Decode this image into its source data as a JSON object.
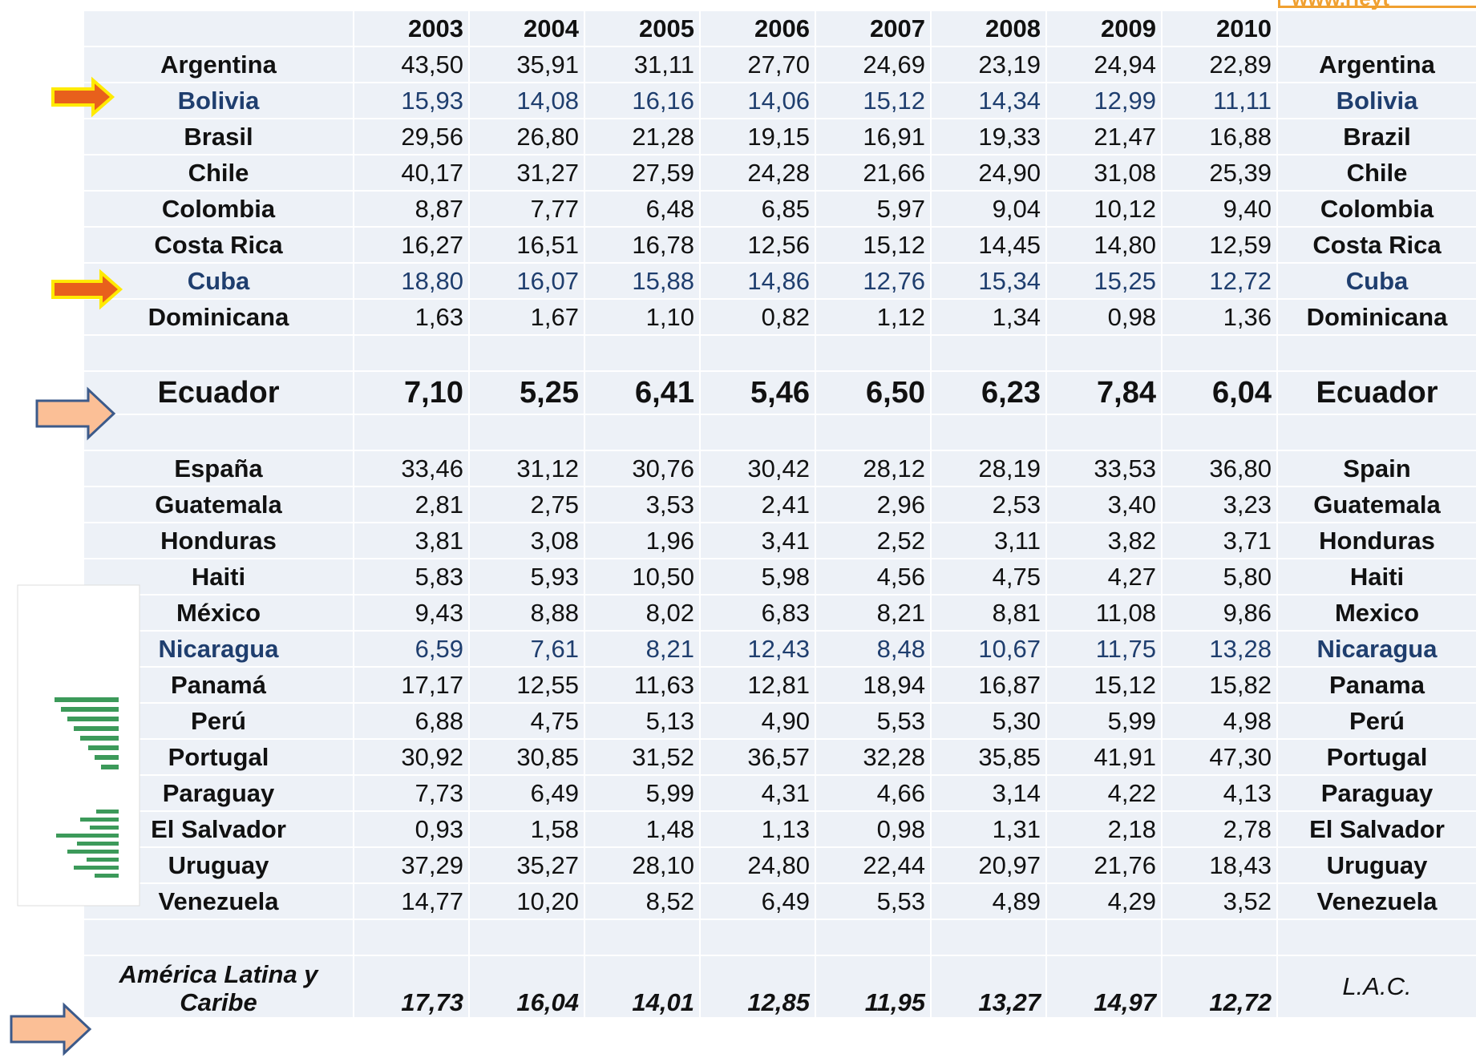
{
  "watermark": "www.rieyt",
  "table": {
    "columns": [
      "2003",
      "2004",
      "2005",
      "2006",
      "2007",
      "2008",
      "2009",
      "2010"
    ],
    "rows": [
      {
        "name": "Argentina",
        "values": [
          "43,50",
          "35,91",
          "31,11",
          "27,70",
          "24,69",
          "23,19",
          "24,94",
          "22,89"
        ],
        "name_en": "Argentina"
      },
      {
        "name": "Bolivia",
        "values": [
          "15,93",
          "14,08",
          "16,16",
          "14,06",
          "15,12",
          "14,34",
          "12,99",
          "11,11"
        ],
        "name_en": "Bolivia"
      },
      {
        "name": "Brasil",
        "values": [
          "29,56",
          "26,80",
          "21,28",
          "19,15",
          "16,91",
          "19,33",
          "21,47",
          "16,88"
        ],
        "name_en": "Brazil"
      },
      {
        "name": "Chile",
        "values": [
          "40,17",
          "31,27",
          "27,59",
          "24,28",
          "21,66",
          "24,90",
          "31,08",
          "25,39"
        ],
        "name_en": "Chile"
      },
      {
        "name": "Colombia",
        "values": [
          "8,87",
          "7,77",
          "6,48",
          "6,85",
          "5,97",
          "9,04",
          "10,12",
          "9,40"
        ],
        "name_en": "Colombia"
      },
      {
        "name": "Costa Rica",
        "values": [
          "16,27",
          "16,51",
          "16,78",
          "12,56",
          "15,12",
          "14,45",
          "14,80",
          "12,59"
        ],
        "name_en": "Costa Rica"
      },
      {
        "name": "Cuba",
        "values": [
          "18,80",
          "16,07",
          "15,88",
          "14,86",
          "12,76",
          "15,34",
          "15,25",
          "12,72"
        ],
        "name_en": "Cuba"
      },
      {
        "name": "Dominicana",
        "values": [
          "1,63",
          "1,67",
          "1,10",
          "0,82",
          "1,12",
          "1,34",
          "0,98",
          "1,36"
        ],
        "name_en": "Dominicana"
      },
      {
        "name": "Ecuador",
        "values": [
          "7,10",
          "5,25",
          "6,41",
          "5,46",
          "6,50",
          "6,23",
          "7,84",
          "6,04"
        ],
        "name_en": "Ecuador"
      },
      {
        "name": "España",
        "values": [
          "33,46",
          "31,12",
          "30,76",
          "30,42",
          "28,12",
          "28,19",
          "33,53",
          "36,80"
        ],
        "name_en": "Spain"
      },
      {
        "name": "Guatemala",
        "values": [
          "2,81",
          "2,75",
          "3,53",
          "2,41",
          "2,96",
          "2,53",
          "3,40",
          "3,23"
        ],
        "name_en": "Guatemala"
      },
      {
        "name": "Honduras",
        "values": [
          "3,81",
          "3,08",
          "1,96",
          "3,41",
          "2,52",
          "3,11",
          "3,82",
          "3,71"
        ],
        "name_en": "Honduras"
      },
      {
        "name": "Haiti",
        "values": [
          "5,83",
          "5,93",
          "10,50",
          "5,98",
          "4,56",
          "4,75",
          "4,27",
          "5,80"
        ],
        "name_en": "Haiti"
      },
      {
        "name": "México",
        "values": [
          "9,43",
          "8,88",
          "8,02",
          "6,83",
          "8,21",
          "8,81",
          "11,08",
          "9,86"
        ],
        "name_en": "Mexico"
      },
      {
        "name": "Nicaragua",
        "values": [
          "6,59",
          "7,61",
          "8,21",
          "12,43",
          "8,48",
          "10,67",
          "11,75",
          "13,28"
        ],
        "name_en": "Nicaragua"
      },
      {
        "name": "Panamá",
        "values": [
          "17,17",
          "12,55",
          "11,63",
          "12,81",
          "18,94",
          "16,87",
          "15,12",
          "15,82"
        ],
        "name_en": "Panama"
      },
      {
        "name": "Perú",
        "values": [
          "6,88",
          "4,75",
          "5,13",
          "4,90",
          "5,53",
          "5,30",
          "5,99",
          "4,98"
        ],
        "name_en": "Perú"
      },
      {
        "name": "Portugal",
        "values": [
          "30,92",
          "30,85",
          "31,52",
          "36,57",
          "32,28",
          "35,85",
          "41,91",
          "47,30"
        ],
        "name_en": "Portugal"
      },
      {
        "name": "Paraguay",
        "values": [
          "7,73",
          "6,49",
          "5,99",
          "4,31",
          "4,66",
          "3,14",
          "4,22",
          "4,13"
        ],
        "name_en": "Paraguay"
      },
      {
        "name": "El Salvador",
        "values": [
          "0,93",
          "1,58",
          "1,48",
          "1,13",
          "0,98",
          "1,31",
          "2,18",
          "2,78"
        ],
        "name_en": "El Salvador"
      },
      {
        "name": "Uruguay",
        "values": [
          "37,29",
          "35,27",
          "28,10",
          "24,80",
          "22,44",
          "20,97",
          "21,76",
          "18,43"
        ],
        "name_en": "Uruguay"
      },
      {
        "name": "Venezuela",
        "values": [
          "14,77",
          "10,20",
          "8,52",
          "6,49",
          "5,53",
          "4,89",
          "4,29",
          "3,52"
        ],
        "name_en": "Venezuela"
      },
      {
        "name": "América Latina y Caribe",
        "values": [
          "17,73",
          "16,04",
          "14,01",
          "12,85",
          "11,95",
          "13,27",
          "14,97",
          "12,72"
        ],
        "name_en": "L.A.C."
      }
    ]
  }
}
